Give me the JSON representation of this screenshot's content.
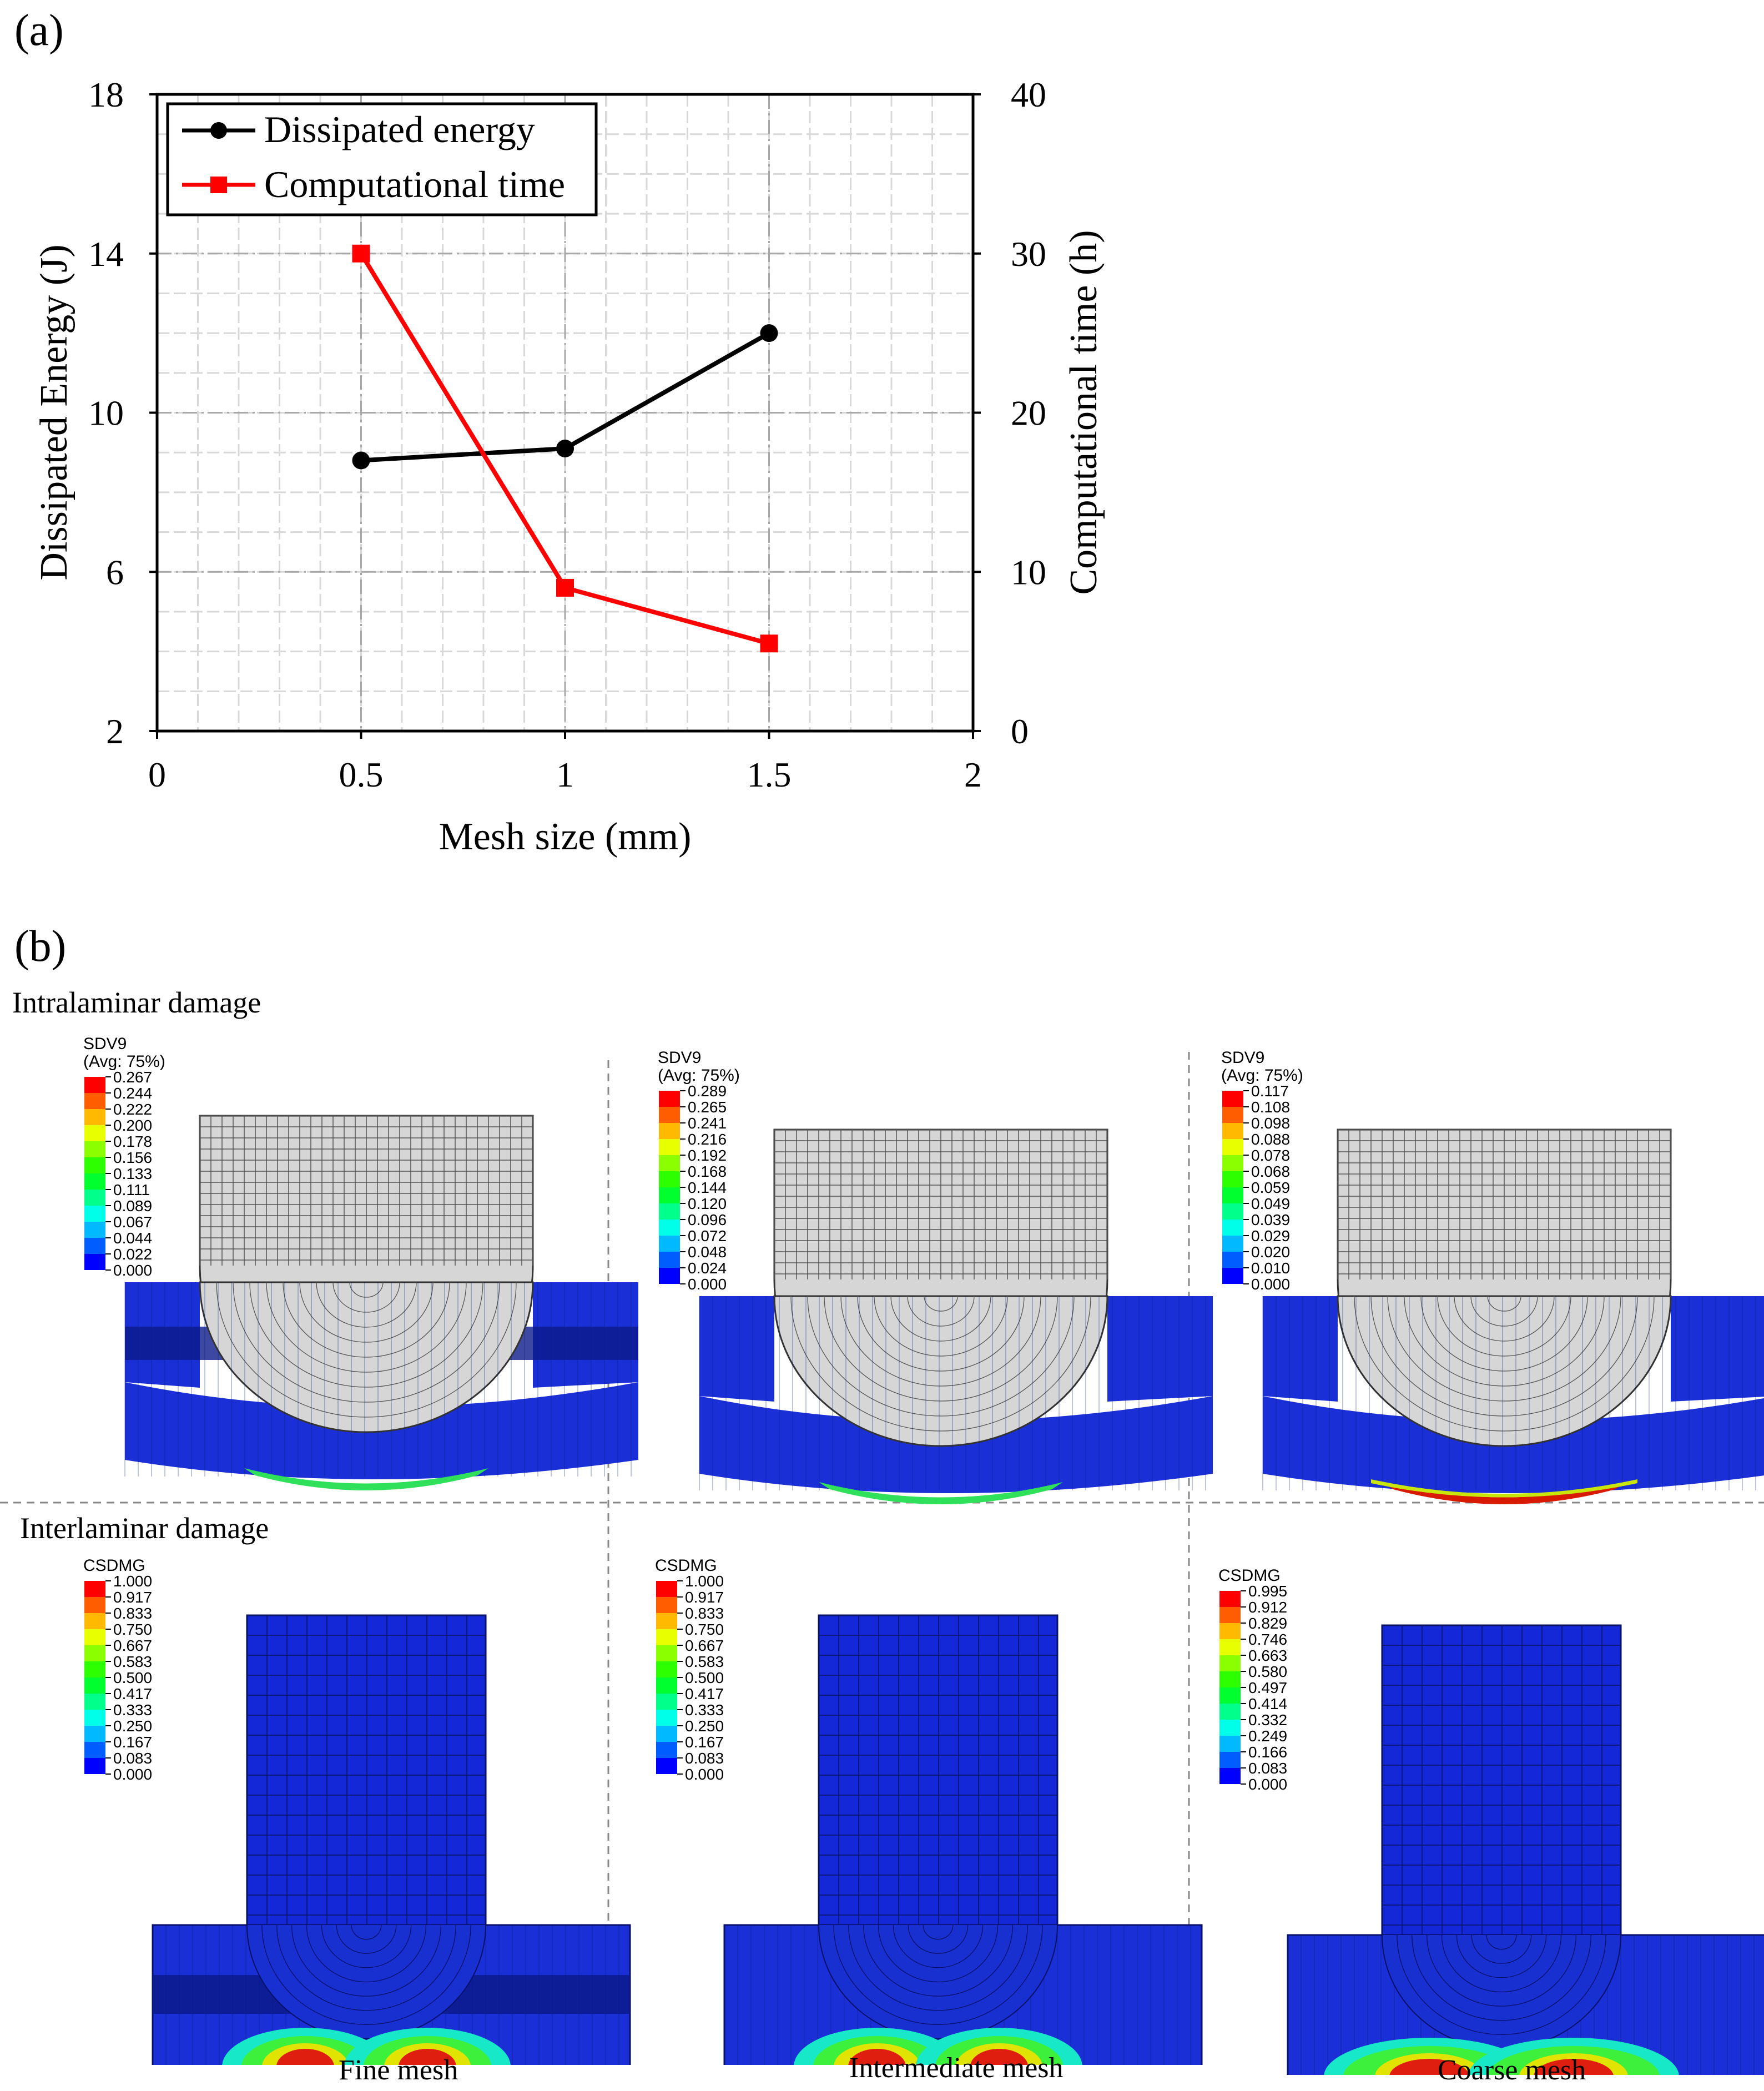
{
  "panel_a": {
    "label": "(a)"
  },
  "panel_b": {
    "label": "(b)"
  },
  "chart_data": {
    "type": "line",
    "title": "",
    "xlabel": "Mesh size (mm)",
    "ylabel": "Dissipated Energy (J)",
    "y2label": "Computational time (h)",
    "xlim": [
      0,
      2
    ],
    "ylim": [
      2,
      18
    ],
    "y2lim": [
      0,
      40
    ],
    "xticks": [
      "0",
      "0.5",
      "1",
      "1.5",
      "2"
    ],
    "xtick_values": [
      0,
      0.5,
      1,
      1.5,
      2
    ],
    "yticks": [
      "2",
      "6",
      "10",
      "14",
      "18"
    ],
    "ytick_values": [
      2,
      6,
      10,
      14,
      18
    ],
    "y2ticks": [
      "0",
      "10",
      "20",
      "30",
      "40"
    ],
    "y2tick_values": [
      0,
      10,
      20,
      30,
      40
    ],
    "legend_position": "top-left",
    "grid": true,
    "series": [
      {
        "name": "Dissipated energy",
        "axis": "left",
        "color": "#000000",
        "marker": "circle",
        "x": [
          0.5,
          1,
          1.5
        ],
        "values": [
          8.8,
          9.1,
          12.0
        ]
      },
      {
        "name": "Computational time",
        "axis": "right",
        "color": "#ff0000",
        "marker": "square",
        "x": [
          0.5,
          1,
          1.5
        ],
        "values": [
          30,
          9,
          5.5
        ]
      }
    ]
  },
  "rows": {
    "intralaminar": "Intralaminar damage",
    "interlaminar": "Interlaminar damage"
  },
  "captions": [
    "Fine mesh",
    "Intermediate mesh",
    "Coarse mesh"
  ],
  "contour_colors": [
    "#0000ff",
    "#005dff",
    "#00b9ff",
    "#00ffe8",
    "#00ff8b",
    "#00ff2e",
    "#2eff00",
    "#8bff00",
    "#e8ff00",
    "#ffb900",
    "#ff5d00",
    "#ff0000"
  ],
  "contours": [
    {
      "row": "intralaminar",
      "var": "SDV9",
      "avg": "(Avg: 75%)",
      "ticks": [
        "0.267",
        "0.244",
        "0.222",
        "0.200",
        "0.178",
        "0.156",
        "0.133",
        "0.111",
        "0.089",
        "0.067",
        "0.044",
        "0.022",
        "0.000"
      ]
    },
    {
      "row": "intralaminar",
      "var": "SDV9",
      "avg": "(Avg: 75%)",
      "ticks": [
        "0.289",
        "0.265",
        "0.241",
        "0.216",
        "0.192",
        "0.168",
        "0.144",
        "0.120",
        "0.096",
        "0.072",
        "0.048",
        "0.024",
        "0.000"
      ]
    },
    {
      "row": "intralaminar",
      "var": "SDV9",
      "avg": "(Avg: 75%)",
      "ticks": [
        "0.117",
        "0.108",
        "0.098",
        "0.088",
        "0.078",
        "0.068",
        "0.059",
        "0.049",
        "0.039",
        "0.029",
        "0.020",
        "0.010",
        "0.000"
      ]
    },
    {
      "row": "interlaminar",
      "var": "CSDMG",
      "avg": "",
      "ticks": [
        "1.000",
        "0.917",
        "0.833",
        "0.750",
        "0.667",
        "0.583",
        "0.500",
        "0.417",
        "0.333",
        "0.250",
        "0.167",
        "0.083",
        "0.000"
      ]
    },
    {
      "row": "interlaminar",
      "var": "CSDMG",
      "avg": "",
      "ticks": [
        "1.000",
        "0.917",
        "0.833",
        "0.750",
        "0.667",
        "0.583",
        "0.500",
        "0.417",
        "0.333",
        "0.250",
        "0.167",
        "0.083",
        "0.000"
      ]
    },
    {
      "row": "interlaminar",
      "var": "CSDMG",
      "avg": "",
      "ticks": [
        "0.995",
        "0.912",
        "0.829",
        "0.746",
        "0.663",
        "0.580",
        "0.497",
        "0.414",
        "0.332",
        "0.249",
        "0.166",
        "0.083",
        "0.000"
      ]
    }
  ]
}
